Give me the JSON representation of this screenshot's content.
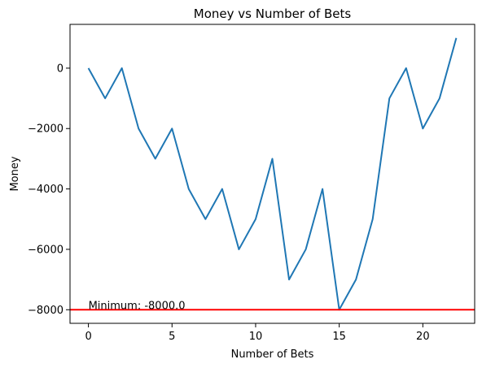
{
  "chart_data": {
    "type": "line",
    "title": "Money vs Number of Bets",
    "xlabel": "Number of Bets",
    "ylabel": "Money",
    "xlim": [
      -1.1,
      23.1
    ],
    "ylim": [
      -8450,
      1450
    ],
    "xticks": [
      0,
      5,
      10,
      15,
      20
    ],
    "yticks": [
      -8000,
      -6000,
      -4000,
      -2000,
      0
    ],
    "ytick_labels": [
      "−8000",
      "−6000",
      "−4000",
      "−2000",
      "0"
    ],
    "xtick_labels": [
      "0",
      "5",
      "10",
      "15",
      "20"
    ],
    "series": [
      {
        "color": "#1f77b4",
        "x": [
          0,
          1,
          2,
          3,
          4,
          5,
          6,
          7,
          8,
          9,
          10,
          11,
          12,
          13,
          14,
          15,
          16,
          17,
          18,
          19,
          20,
          21,
          22
        ],
        "y": [
          0,
          -1000,
          0,
          -2000,
          -3000,
          -2000,
          -4000,
          -5000,
          -4000,
          -6000,
          -5000,
          -3000,
          -7000,
          -6000,
          -4000,
          -8000,
          -7000,
          -5000,
          -1000,
          0,
          -2000,
          -1000,
          1000
        ]
      }
    ],
    "hline": {
      "y": -8000,
      "color": "#ff0000"
    },
    "annotation": {
      "text": "Minimum: -8000.0",
      "x": 0,
      "y": -8000
    },
    "grid": false
  }
}
